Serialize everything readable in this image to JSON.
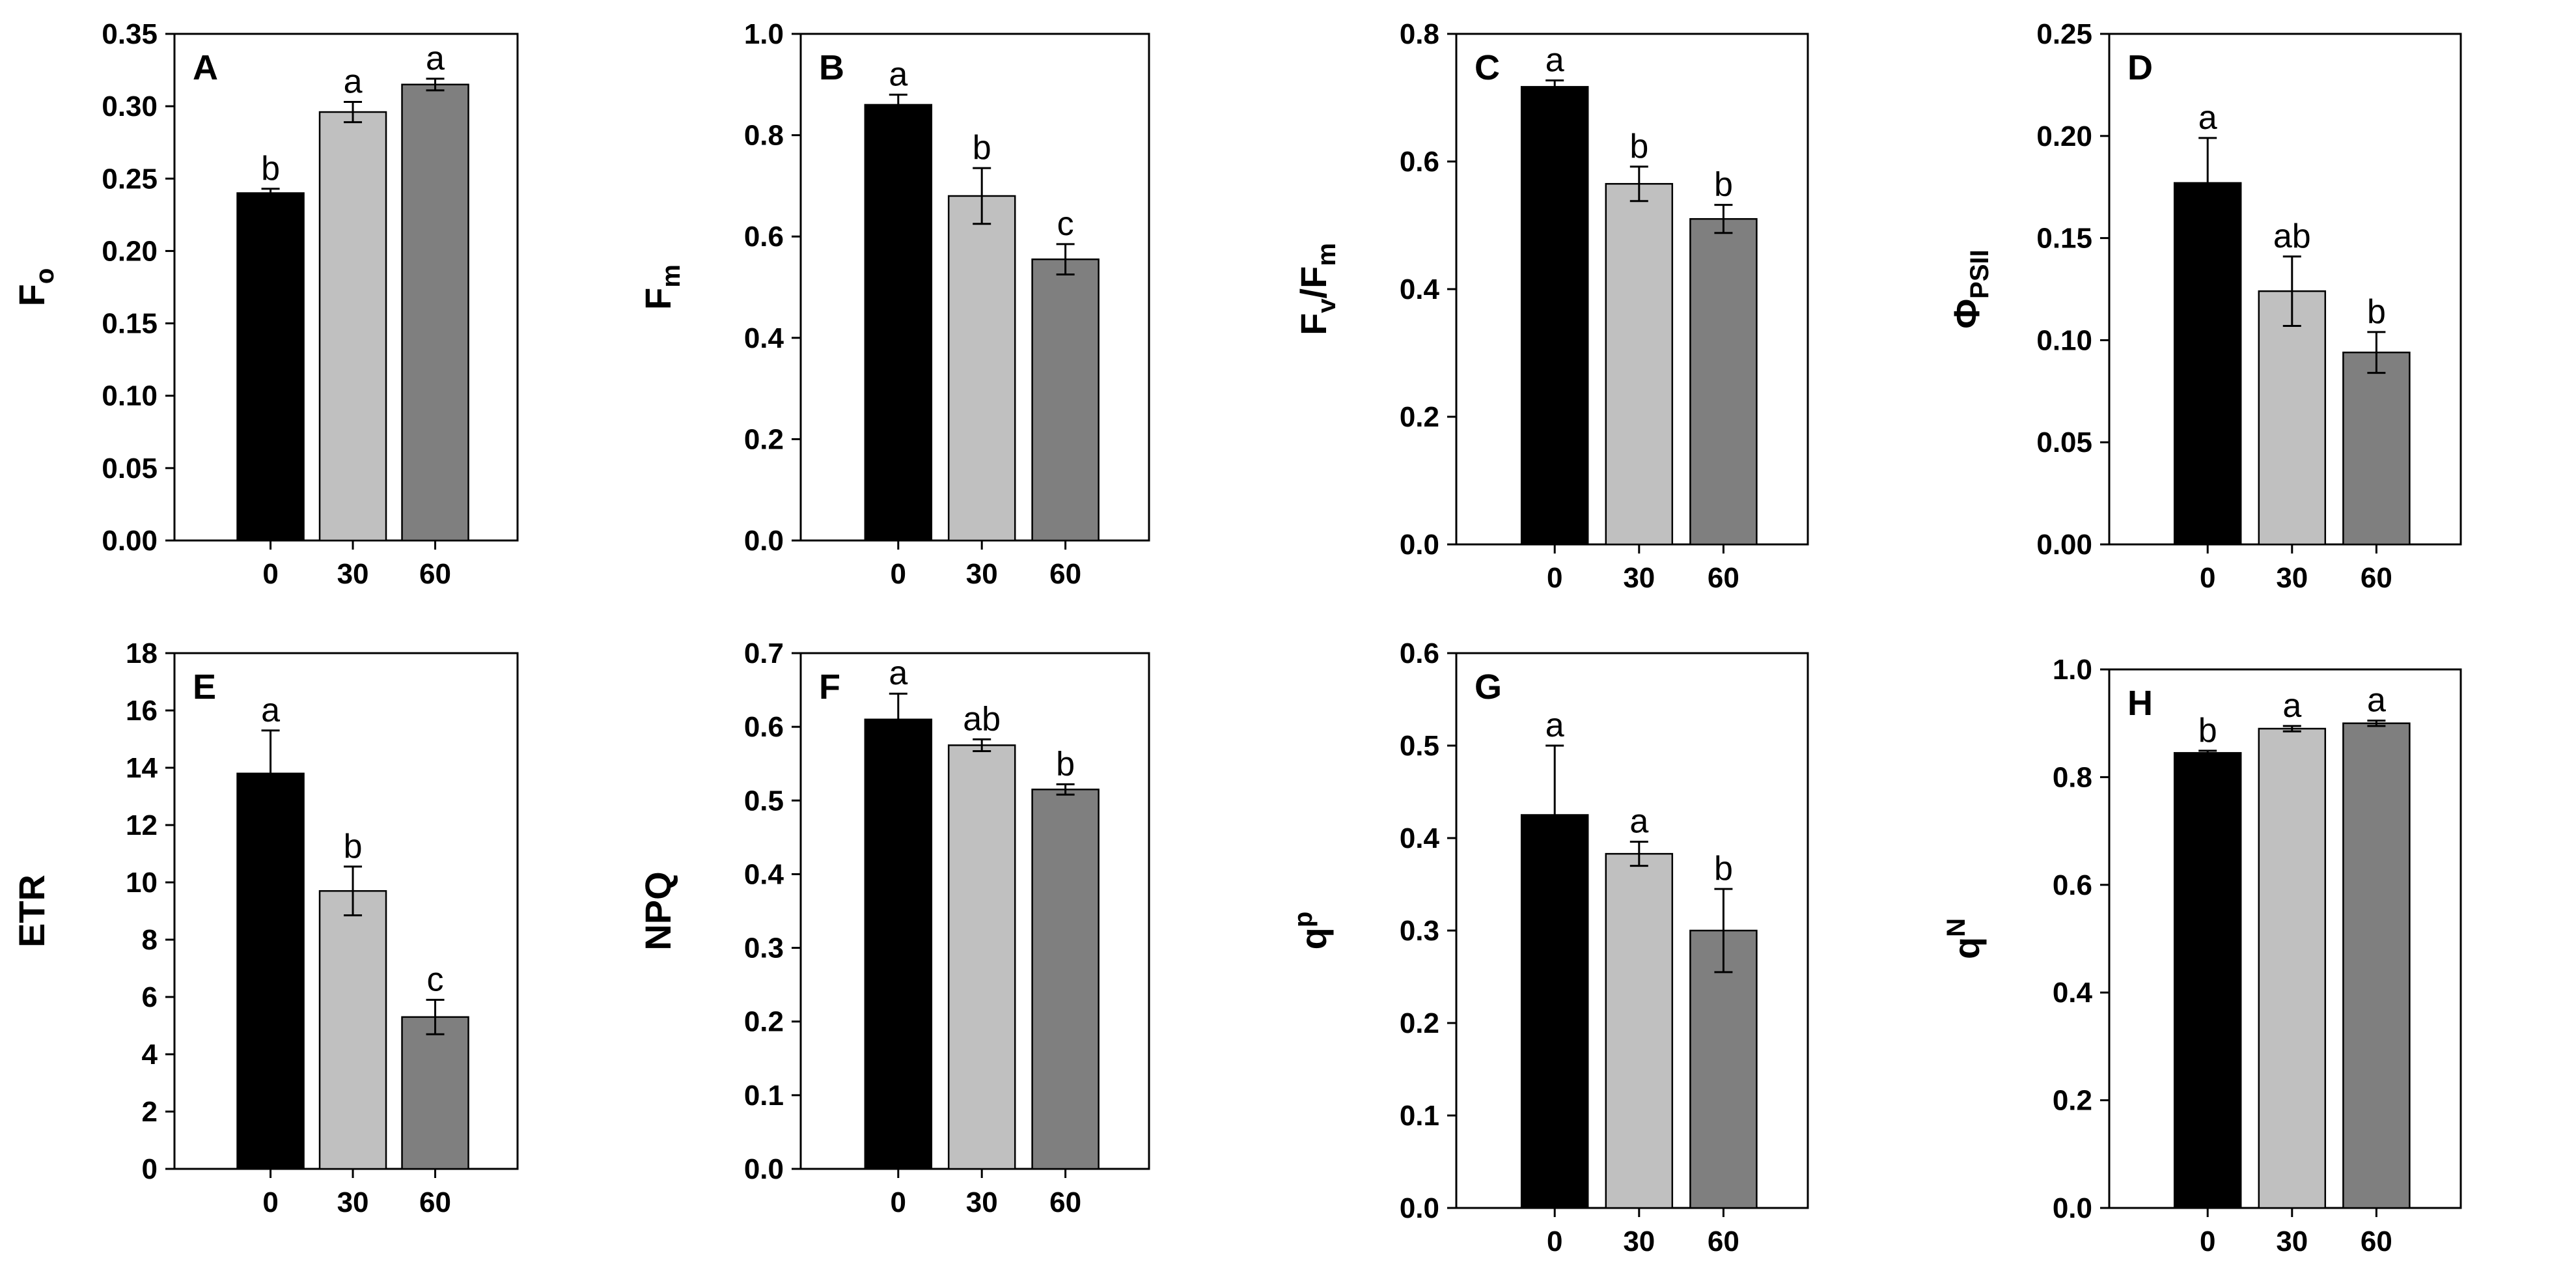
{
  "chart_data": [
    {
      "type": "bar",
      "panel": "A",
      "ylabel": {
        "main": "F",
        "sub": "o",
        "subMode": "sub"
      },
      "categories": [
        "0",
        "30",
        "60"
      ],
      "values": [
        0.24,
        0.296,
        0.315
      ],
      "errors": [
        0.003,
        0.007,
        0.004
      ],
      "letters": [
        "b",
        "a",
        "a"
      ],
      "ylim": [
        0,
        0.35
      ],
      "yticks": [
        0,
        0.05,
        0.1,
        0.15,
        0.2,
        0.25,
        0.3,
        0.35
      ],
      "ytick_labels": [
        "0.00",
        "0.05",
        "0.10",
        "0.15",
        "0.20",
        "0.25",
        "0.30",
        "0.35"
      ],
      "colors": [
        "#000000",
        "#c0c0c0",
        "#7f7f7f"
      ]
    },
    {
      "type": "bar",
      "panel": "B",
      "ylabel": {
        "main": "F",
        "sub": "m",
        "subMode": "sub"
      },
      "categories": [
        "0",
        "30",
        "60"
      ],
      "values": [
        0.86,
        0.68,
        0.555
      ],
      "errors": [
        0.02,
        0.055,
        0.03
      ],
      "letters": [
        "a",
        "b",
        "c"
      ],
      "ylim": [
        0,
        1.0
      ],
      "yticks": [
        0,
        0.2,
        0.4,
        0.6,
        0.8,
        1.0
      ],
      "ytick_labels": [
        "0.0",
        "0.2",
        "0.4",
        "0.6",
        "0.8",
        "1.0"
      ],
      "colors": [
        "#000000",
        "#c0c0c0",
        "#7f7f7f"
      ]
    },
    {
      "type": "bar",
      "panel": "C",
      "ylabel": {
        "main": "F",
        "sub": "v",
        "mid": "/F",
        "sub2": "m",
        "subMode": "sub"
      },
      "categories": [
        "0",
        "30",
        "60"
      ],
      "values": [
        0.717,
        0.565,
        0.51
      ],
      "errors": [
        0.01,
        0.027,
        0.022
      ],
      "letters": [
        "a",
        "b",
        "b"
      ],
      "ylim": [
        0,
        0.8
      ],
      "yticks": [
        0,
        0.2,
        0.4,
        0.6,
        0.8
      ],
      "ytick_labels": [
        "0.0",
        "0.2",
        "0.4",
        "0.6",
        "0.8"
      ],
      "colors": [
        "#000000",
        "#c0c0c0",
        "#7f7f7f"
      ]
    },
    {
      "type": "bar",
      "panel": "D",
      "ylabel": {
        "main": "Φ",
        "sub": "PSII",
        "subMode": "sub"
      },
      "categories": [
        "0",
        "30",
        "60"
      ],
      "values": [
        0.177,
        0.124,
        0.094
      ],
      "errors": [
        0.022,
        0.017,
        0.01
      ],
      "letters": [
        "a",
        "ab",
        "b"
      ],
      "ylim": [
        0,
        0.25
      ],
      "yticks": [
        0,
        0.05,
        0.1,
        0.15,
        0.2,
        0.25
      ],
      "ytick_labels": [
        "0.00",
        "0.05",
        "0.10",
        "0.15",
        "0.20",
        "0.25"
      ],
      "colors": [
        "#000000",
        "#c0c0c0",
        "#7f7f7f"
      ]
    },
    {
      "type": "bar",
      "panel": "E",
      "ylabel": {
        "main": "ETR",
        "sub": "",
        "subMode": "none"
      },
      "categories": [
        "0",
        "30",
        "60"
      ],
      "values": [
        13.8,
        9.7,
        5.3
      ],
      "errors": [
        1.5,
        0.85,
        0.6
      ],
      "letters": [
        "a",
        "b",
        "c"
      ],
      "ylim": [
        0,
        18
      ],
      "yticks": [
        0,
        2,
        4,
        6,
        8,
        10,
        12,
        14,
        16,
        18
      ],
      "ytick_labels": [
        "0",
        "2",
        "4",
        "6",
        "8",
        "10",
        "12",
        "14",
        "16",
        "18"
      ],
      "colors": [
        "#000000",
        "#c0c0c0",
        "#7f7f7f"
      ]
    },
    {
      "type": "bar",
      "panel": "F",
      "ylabel": {
        "main": "NPQ",
        "sub": "",
        "subMode": "none"
      },
      "categories": [
        "0",
        "30",
        "60"
      ],
      "values": [
        0.61,
        0.575,
        0.515
      ],
      "errors": [
        0.035,
        0.008,
        0.007
      ],
      "letters": [
        "a",
        "ab",
        "b"
      ],
      "ylim": [
        0,
        0.7
      ],
      "yticks": [
        0,
        0.1,
        0.2,
        0.3,
        0.4,
        0.5,
        0.6,
        0.7
      ],
      "ytick_labels": [
        "0.0",
        "0.1",
        "0.2",
        "0.3",
        "0.4",
        "0.5",
        "0.6",
        "0.7"
      ],
      "colors": [
        "#000000",
        "#c0c0c0",
        "#7f7f7f"
      ]
    },
    {
      "type": "bar",
      "panel": "G",
      "ylabel": {
        "main": "q",
        "sub": "p",
        "subMode": "sup"
      },
      "categories": [
        "0",
        "30",
        "60"
      ],
      "values": [
        0.425,
        0.383,
        0.3
      ],
      "errors": [
        0.075,
        0.013,
        0.045
      ],
      "letters": [
        "a",
        "a",
        "b"
      ],
      "ylim": [
        0,
        0.6
      ],
      "yticks": [
        0,
        0.1,
        0.2,
        0.3,
        0.4,
        0.5,
        0.6
      ],
      "ytick_labels": [
        "0.0",
        "0.1",
        "0.2",
        "0.3",
        "0.4",
        "0.5",
        "0.6"
      ],
      "colors": [
        "#000000",
        "#c0c0c0",
        "#7f7f7f"
      ]
    },
    {
      "type": "bar",
      "panel": "H",
      "ylabel": {
        "main": "q",
        "sub": "N",
        "subMode": "sup"
      },
      "categories": [
        "0",
        "30",
        "60"
      ],
      "values": [
        0.845,
        0.89,
        0.9
      ],
      "errors": [
        0.004,
        0.005,
        0.005
      ],
      "letters": [
        "b",
        "a",
        "a"
      ],
      "ylim": [
        0,
        1.0
      ],
      "yticks": [
        0,
        0.2,
        0.4,
        0.6,
        0.8,
        1.0
      ],
      "ytick_labels": [
        "0.0",
        "0.2",
        "0.4",
        "0.6",
        "0.8",
        "1.0"
      ],
      "colors": [
        "#000000",
        "#c0c0c0",
        "#7f7f7f"
      ]
    }
  ]
}
